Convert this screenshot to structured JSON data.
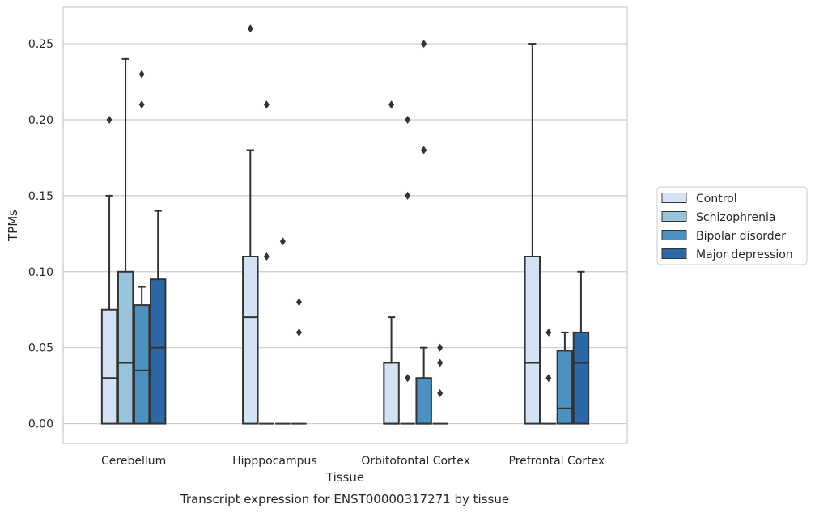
{
  "caption": "Transcript expression for ENST00000317271 by tissue",
  "chart_data": {
    "type": "box",
    "xlabel": "Tissue",
    "ylabel": "TPMs",
    "ylim": [
      -0.013,
      0.274
    ],
    "yticks": [
      0.0,
      0.05,
      0.1,
      0.15,
      0.2,
      0.25
    ],
    "ytick_labels": [
      "0.00",
      "0.05",
      "0.10",
      "0.15",
      "0.20",
      "0.25"
    ],
    "grid": "horizontal",
    "legend_position": "right",
    "categories": [
      "Cerebellum",
      "Hipppocampus",
      "Orbitofontal Cortex",
      "Prefrontal Cortex"
    ],
    "series": [
      {
        "name": "Control",
        "color": "#d3e3f3",
        "boxes": [
          {
            "q1": 0.0,
            "median": 0.03,
            "q3": 0.075,
            "whislo": 0.0,
            "whishi": 0.15,
            "fliers": [
              0.2
            ]
          },
          {
            "q1": 0.0,
            "median": 0.07,
            "q3": 0.11,
            "whislo": 0.0,
            "whishi": 0.18,
            "fliers": [
              0.26
            ]
          },
          {
            "q1": 0.0,
            "median": 0.0,
            "q3": 0.04,
            "whislo": 0.0,
            "whishi": 0.07,
            "fliers": [
              0.21
            ]
          },
          {
            "q1": 0.0,
            "median": 0.04,
            "q3": 0.11,
            "whislo": 0.0,
            "whishi": 0.25,
            "fliers": []
          }
        ]
      },
      {
        "name": "Schizophrenia",
        "color": "#9ac3de",
        "boxes": [
          {
            "q1": 0.0,
            "median": 0.04,
            "q3": 0.1,
            "whislo": 0.0,
            "whishi": 0.24,
            "fliers": []
          },
          {
            "q1": 0.0,
            "median": 0.0,
            "q3": 0.0,
            "whislo": 0.0,
            "whishi": 0.0,
            "fliers": [
              0.11,
              0.21
            ]
          },
          {
            "q1": 0.0,
            "median": 0.0,
            "q3": 0.0,
            "whislo": 0.0,
            "whishi": 0.0,
            "fliers": [
              0.03,
              0.15,
              0.2
            ]
          },
          {
            "q1": 0.0,
            "median": 0.0,
            "q3": 0.0,
            "whislo": 0.0,
            "whishi": 0.0,
            "fliers": [
              0.03,
              0.06
            ]
          }
        ]
      },
      {
        "name": "Bipolar disorder",
        "color": "#4c91c2",
        "boxes": [
          {
            "q1": 0.0,
            "median": 0.035,
            "q3": 0.078,
            "whislo": 0.0,
            "whishi": 0.09,
            "fliers": [
              0.21,
              0.23
            ]
          },
          {
            "q1": 0.0,
            "median": 0.0,
            "q3": 0.0,
            "whislo": 0.0,
            "whishi": 0.0,
            "fliers": [
              0.12
            ]
          },
          {
            "q1": 0.0,
            "median": 0.0,
            "q3": 0.03,
            "whislo": 0.0,
            "whishi": 0.05,
            "fliers": [
              0.18,
              0.25
            ]
          },
          {
            "q1": 0.0,
            "median": 0.01,
            "q3": 0.048,
            "whislo": 0.0,
            "whishi": 0.06,
            "fliers": []
          }
        ]
      },
      {
        "name": "Major depression",
        "color": "#2a68a8",
        "boxes": [
          {
            "q1": 0.0,
            "median": 0.05,
            "q3": 0.095,
            "whislo": 0.0,
            "whishi": 0.14,
            "fliers": []
          },
          {
            "q1": 0.0,
            "median": 0.0,
            "q3": 0.0,
            "whislo": 0.0,
            "whishi": 0.0,
            "fliers": [
              0.06,
              0.08
            ]
          },
          {
            "q1": 0.0,
            "median": 0.0,
            "q3": 0.0,
            "whislo": 0.0,
            "whishi": 0.0,
            "fliers": [
              0.02,
              0.04,
              0.05
            ]
          },
          {
            "q1": 0.0,
            "median": 0.04,
            "q3": 0.06,
            "whislo": 0.0,
            "whishi": 0.1,
            "fliers": []
          }
        ]
      }
    ]
  }
}
